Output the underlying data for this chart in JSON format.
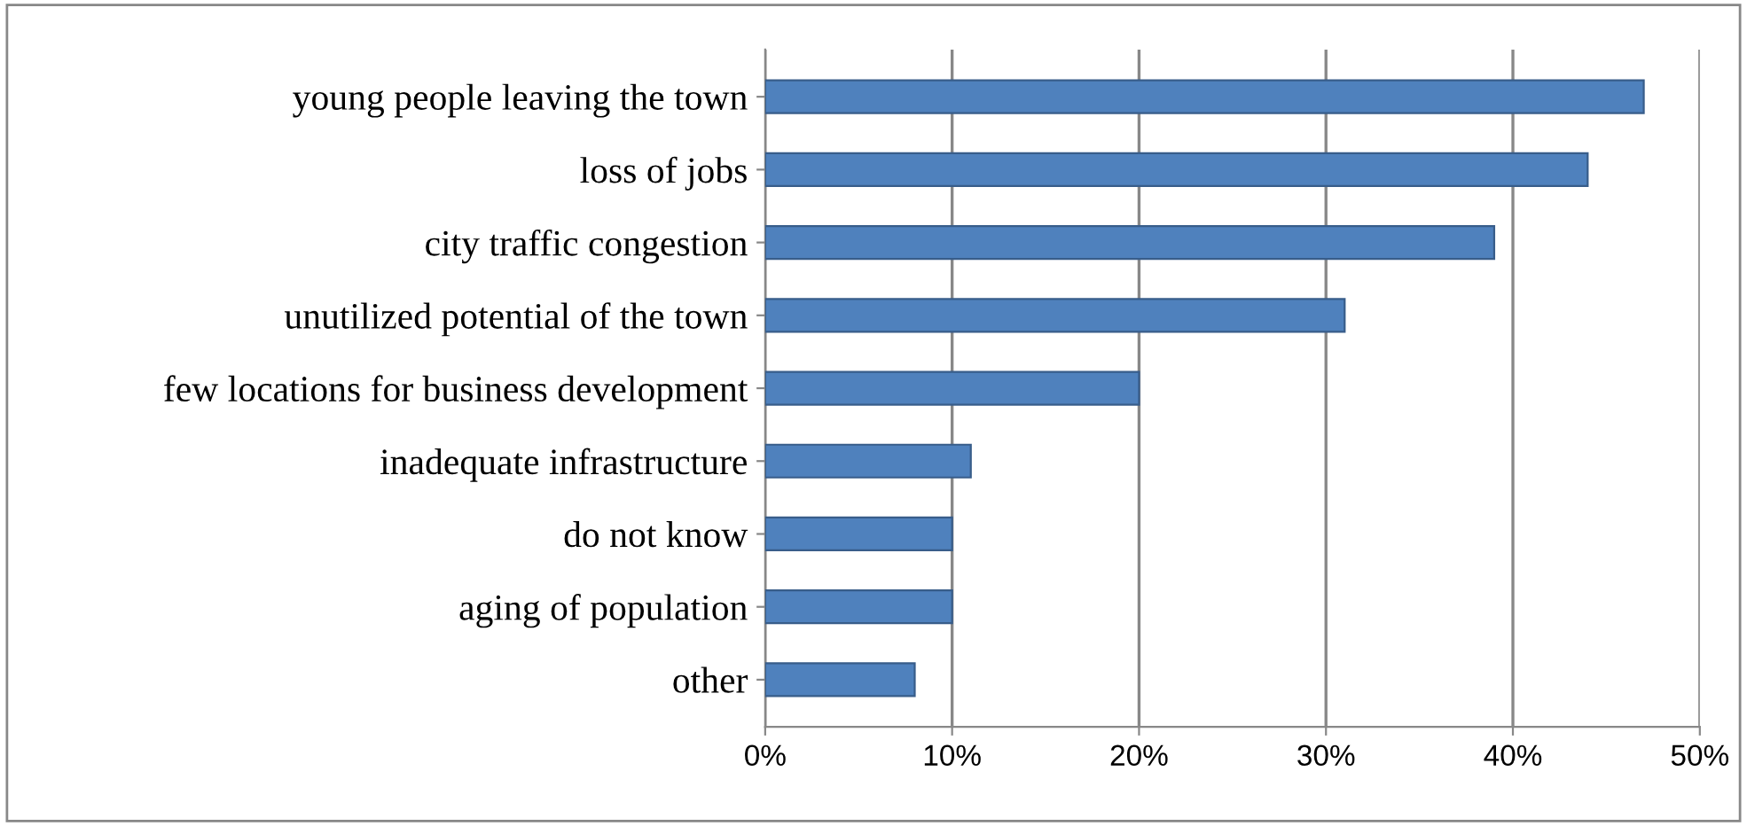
{
  "chart_data": {
    "type": "bar",
    "orientation": "horizontal",
    "categories": [
      "young people leaving the town",
      "loss of jobs",
      "city traffic congestion",
      "unutilized potential of the town",
      "few locations for business development",
      "inadequate infrastructure",
      "do not know",
      "aging of population",
      "other"
    ],
    "values": [
      47,
      44,
      39,
      31,
      20,
      11,
      10,
      10,
      8
    ],
    "color": "#4f81bd",
    "xlim": [
      0,
      50
    ],
    "xticks": [
      {
        "value": 0,
        "label": "0%"
      },
      {
        "value": 10,
        "label": "10%"
      },
      {
        "value": 20,
        "label": "20%"
      },
      {
        "value": 30,
        "label": "30%"
      },
      {
        "value": 40,
        "label": "40%"
      },
      {
        "value": 50,
        "label": "50%"
      }
    ],
    "grid": "x",
    "legend": false
  }
}
